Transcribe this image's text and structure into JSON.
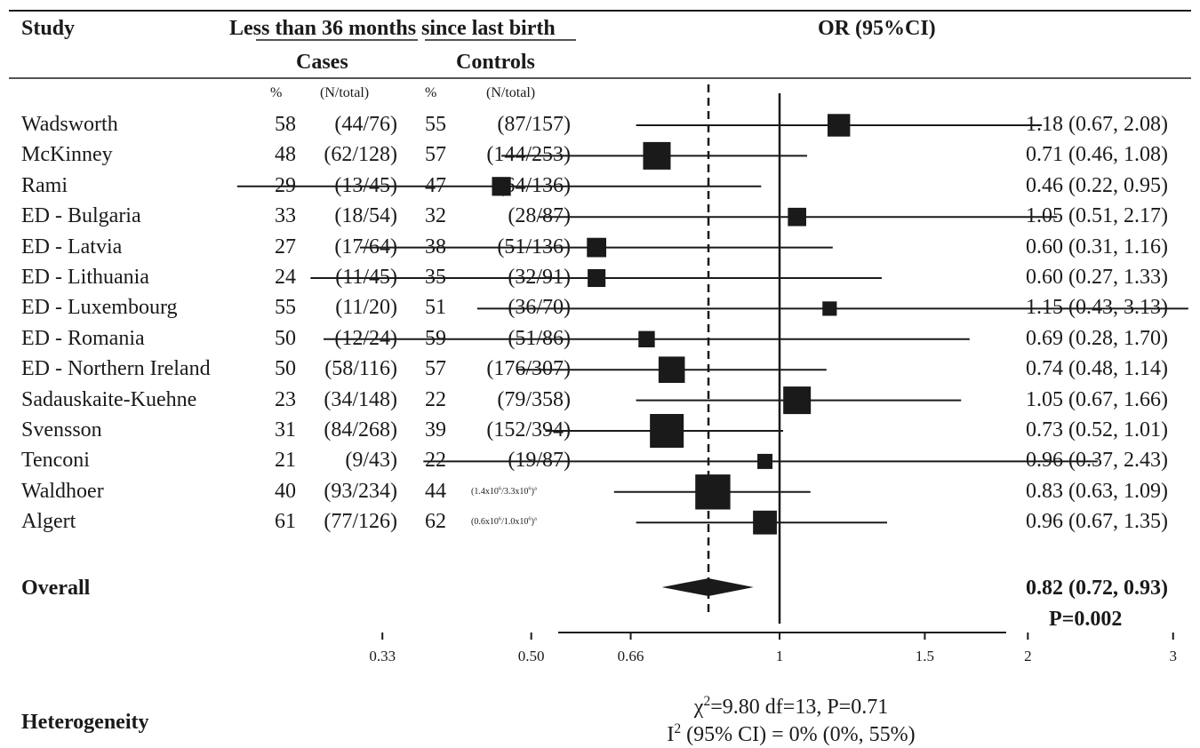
{
  "header": {
    "study": "Study",
    "group": "Less than 36 months since last birth",
    "cases": "Cases",
    "controls": "Controls",
    "or": "OR (95%CI)",
    "pct": "%",
    "ntotal": "(N/total)"
  },
  "rows": [
    {
      "study": "Wadsworth",
      "case_pct": "58",
      "case_n": "(44/76)",
      "ctrl_pct": "55",
      "ctrl_n": "(87/157)",
      "ci_text": "1.18 (0.67, 2.08)"
    },
    {
      "study": "McKinney",
      "case_pct": "48",
      "case_n": "(62/128)",
      "ctrl_pct": "57",
      "ctrl_n": "(144/253)",
      "ci_text": "0.71 (0.46, 1.08)"
    },
    {
      "study": "Rami",
      "case_pct": "29",
      "case_n": "(13/45)",
      "ctrl_pct": "47",
      "ctrl_n": "(64/136)",
      "ci_text": "0.46 (0.22, 0.95)"
    },
    {
      "study": "ED - Bulgaria",
      "case_pct": "33",
      "case_n": "(18/54)",
      "ctrl_pct": "32",
      "ctrl_n": "(28/87)",
      "ci_text": "1.05 (0.51, 2.17)"
    },
    {
      "study": "ED - Latvia",
      "case_pct": "27",
      "case_n": "(17/64)",
      "ctrl_pct": "38",
      "ctrl_n": "(51/136)",
      "ci_text": "0.60 (0.31, 1.16)"
    },
    {
      "study": "ED - Lithuania",
      "case_pct": "24",
      "case_n": "(11/45)",
      "ctrl_pct": "35",
      "ctrl_n": "(32/91)",
      "ci_text": "0.60 (0.27, 1.33)"
    },
    {
      "study": "ED - Luxembourg",
      "case_pct": "55",
      "case_n": "(11/20)",
      "ctrl_pct": "51",
      "ctrl_n": "(36/70)",
      "ci_text": "1.15 (0.43, 3.13)"
    },
    {
      "study": "ED - Romania",
      "case_pct": "50",
      "case_n": "(12/24)",
      "ctrl_pct": "59",
      "ctrl_n": "(51/86)",
      "ci_text": "0.69 (0.28, 1.70)"
    },
    {
      "study": "ED - Northern Ireland",
      "case_pct": "50",
      "case_n": "(58/116)",
      "ctrl_pct": "57",
      "ctrl_n": "(176/307)",
      "ci_text": "0.74 (0.48, 1.14)"
    },
    {
      "study": "Sadauskaite-Kuehne",
      "case_pct": "23",
      "case_n": "(34/148)",
      "ctrl_pct": "22",
      "ctrl_n": "(79/358)",
      "ci_text": "1.05 (0.67, 1.66)"
    },
    {
      "study": "Svensson",
      "case_pct": "31",
      "case_n": "(84/268)",
      "ctrl_pct": "39",
      "ctrl_n": "(152/394)",
      "ci_text": "0.73 (0.52, 1.01)"
    },
    {
      "study": "Tenconi",
      "case_pct": "21",
      "case_n": "(9/43)",
      "ctrl_pct": "22",
      "ctrl_n": "(19/87)",
      "ci_text": "0.96 (0.37, 2.43)"
    },
    {
      "study": "Waldhoer",
      "case_pct": "40",
      "case_n": "(93/234)",
      "ctrl_pct": "44",
      "ctrl_n_html": "(1.4x10<sup>6</sup>/3.3x10<sup>6</sup>)<sup>a</sup>",
      "ci_text": "0.83 (0.63, 1.09)"
    },
    {
      "study": "Algert",
      "case_pct": "61",
      "case_n": "(77/126)",
      "ctrl_pct": "62",
      "ctrl_n_html": "(0.6x10<sup>6</sup>/1.0x10<sup>6</sup>)<sup>a</sup>",
      "ci_text": "0.96 (0.67, 1.35)"
    }
  ],
  "overall": {
    "label": "Overall",
    "ci_text": "0.82 (0.72, 0.93)",
    "p_text": "P=0.002"
  },
  "heterogeneity": {
    "label": "Heterogeneity",
    "line1_html": "χ<sup>2</sup>=9.80 df=13, P=0.71",
    "line2_html": "I<sup>2</sup> (95% CI) = 0% (0%, 55%)"
  },
  "chart_data": {
    "type": "forest",
    "scale": "log",
    "xlim": [
      0.3,
      3.5
    ],
    "ticks": [
      0.33,
      0.5,
      0.66,
      1,
      1.5,
      2,
      3
    ],
    "tick_labels": [
      "0.33",
      "0.50",
      "0.66",
      "1",
      "1.5",
      "2",
      "3"
    ],
    "reference_line": 1,
    "pooled_line": 0.82,
    "studies": [
      "Wadsworth",
      "McKinney",
      "Rami",
      "ED - Bulgaria",
      "ED - Latvia",
      "ED - Lithuania",
      "ED - Luxembourg",
      "ED - Romania",
      "ED - Northern Ireland",
      "Sadauskaite-Kuehne",
      "Svensson",
      "Tenconi",
      "Waldhoer",
      "Algert"
    ],
    "or": [
      1.18,
      0.71,
      0.46,
      1.05,
      0.6,
      0.6,
      1.15,
      0.69,
      0.74,
      1.05,
      0.73,
      0.96,
      0.83,
      0.96
    ],
    "lower": [
      0.67,
      0.46,
      0.22,
      0.51,
      0.31,
      0.27,
      0.43,
      0.28,
      0.48,
      0.67,
      0.52,
      0.37,
      0.63,
      0.67
    ],
    "upper": [
      2.08,
      1.08,
      0.95,
      2.17,
      1.16,
      1.33,
      3.13,
      1.7,
      1.14,
      1.66,
      1.01,
      2.43,
      1.09,
      1.35
    ],
    "weights": [
      0.55,
      0.75,
      0.4,
      0.38,
      0.42,
      0.36,
      0.22,
      0.3,
      0.7,
      0.75,
      1.0,
      0.25,
      1.05,
      0.6
    ],
    "overall": {
      "or": 0.82,
      "lower": 0.72,
      "upper": 0.93
    }
  }
}
